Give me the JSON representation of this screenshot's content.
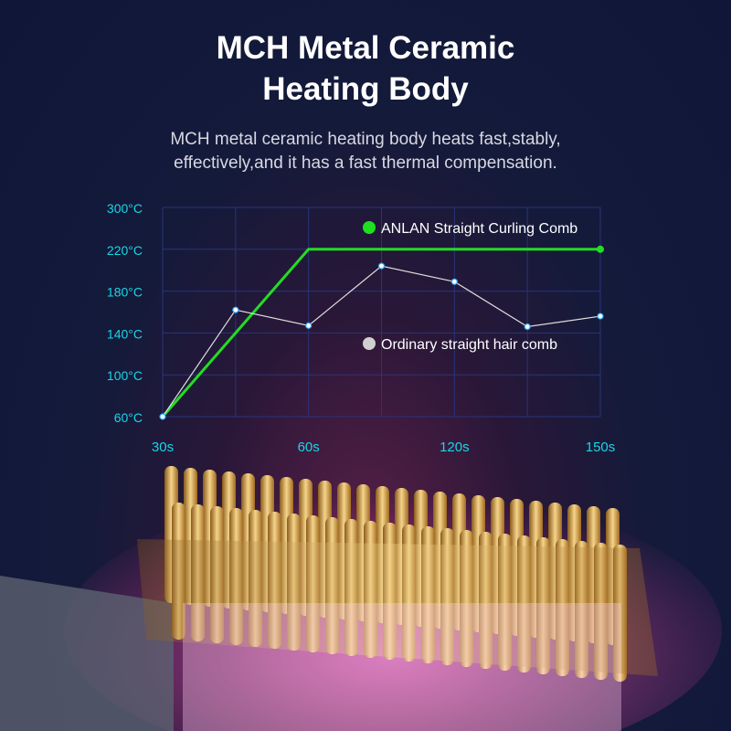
{
  "header": {
    "title_line1": "MCH Metal Ceramic",
    "title_line2": "Heating Body",
    "subtitle_line1": "MCH metal ceramic heating body heats fast,stably,",
    "subtitle_line2": "effectively,and it has a fast thermal compensation."
  },
  "chart_data": {
    "type": "line",
    "y_ticks": [
      "300°C",
      "220°C",
      "180°C",
      "140°C",
      "100°C",
      "60°C"
    ],
    "y_tick_values": [
      300,
      220,
      180,
      140,
      100,
      60
    ],
    "x_positions": 7,
    "x_tick_labels": [
      {
        "index": 0,
        "label": "30s"
      },
      {
        "index": 2,
        "label": "60s"
      },
      {
        "index": 4,
        "label": "120s"
      },
      {
        "index": 6,
        "label": "150s"
      }
    ],
    "grid": true,
    "legend_placement": "inside-right",
    "series": [
      {
        "name": "ANLAN Straight Curling Comb",
        "color": "#22dd22",
        "values": [
          60,
          null,
          220,
          null,
          null,
          null,
          220
        ],
        "marker_last_only": true
      },
      {
        "name": "Ordinary straight hair comb",
        "color": "#dddddd",
        "values": [
          60,
          162,
          147,
          204,
          189,
          146,
          156
        ]
      }
    ],
    "colors": {
      "axis_text": "#19d6e6",
      "grid": "#28347a"
    }
  }
}
